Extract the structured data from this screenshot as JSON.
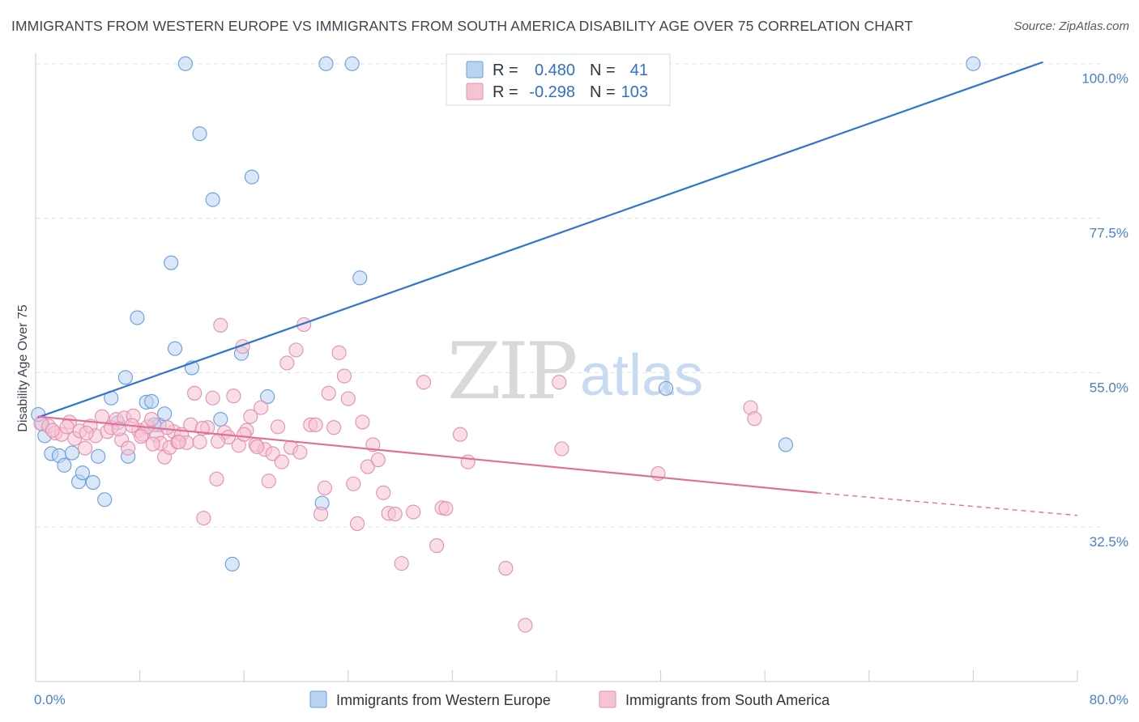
{
  "title": "IMMIGRANTS FROM WESTERN EUROPE VS IMMIGRANTS FROM SOUTH AMERICA DISABILITY AGE OVER 75 CORRELATION CHART",
  "source": "Source: ZipAtlas.com",
  "watermark": {
    "part1": "ZIP",
    "part2": "atlas"
  },
  "colors": {
    "blue": "#2f74d0",
    "blue_fill": "#b9d3f3",
    "pink": "#e07098",
    "pink_fill": "#f6c3d3",
    "grid": "#dde1e6",
    "tick_label": "#4a7fd0"
  },
  "legend": {
    "r_label": "R =",
    "n_label": "N =",
    "rows": [
      {
        "r": "0.480",
        "n": "41",
        "color": "blue"
      },
      {
        "r": "-0.298",
        "n": "103",
        "color": "pink"
      }
    ]
  },
  "chart_data": {
    "type": "scatter",
    "title": "IMMIGRANTS FROM WESTERN EUROPE VS IMMIGRANTS FROM SOUTH AMERICA DISABILITY AGE OVER 75 CORRELATION CHART",
    "xlabel": "",
    "ylabel": "Disability Age Over 75",
    "xlim": [
      0,
      80
    ],
    "ylim": [
      10,
      101.5
    ],
    "x_tick_labels": [
      {
        "value": 0,
        "label": "0.0%"
      },
      {
        "value": 80,
        "label": "80.0%"
      }
    ],
    "y_tick_labels": [
      {
        "value": 100,
        "label": "100.0%"
      },
      {
        "value": 77.5,
        "label": "77.5%"
      },
      {
        "value": 55,
        "label": "55.0%"
      },
      {
        "value": 32.5,
        "label": "32.5%"
      }
    ],
    "grid": true,
    "legend_position": "bottom",
    "series": [
      {
        "name": "Immigrants from Western Europe",
        "color": "blue",
        "trend": {
          "x1": 0.2,
          "y1": 48.5,
          "x2": 77.3,
          "y2": 100.2,
          "dashed_to": null
        },
        "points": [
          [
            0.5,
            47.5
          ],
          [
            0.7,
            45.8
          ],
          [
            1.2,
            43.2
          ],
          [
            1.8,
            42.9
          ],
          [
            2.2,
            41.5
          ],
          [
            2.8,
            43.3
          ],
          [
            3.3,
            39.1
          ],
          [
            3.6,
            40.4
          ],
          [
            4.4,
            39.0
          ],
          [
            4.8,
            42.8
          ],
          [
            5.3,
            36.5
          ],
          [
            5.8,
            51.3
          ],
          [
            6.3,
            47.7
          ],
          [
            6.9,
            54.3
          ],
          [
            7.1,
            42.8
          ],
          [
            7.8,
            63.0
          ],
          [
            8.5,
            50.7
          ],
          [
            8.9,
            50.8
          ],
          [
            9.5,
            47.4
          ],
          [
            9.9,
            49.0
          ],
          [
            10.4,
            71.0
          ],
          [
            10.7,
            58.5
          ],
          [
            11.5,
            100.0
          ],
          [
            12.0,
            55.7
          ],
          [
            12.6,
            89.8
          ],
          [
            13.6,
            80.2
          ],
          [
            14.2,
            48.2
          ],
          [
            15.1,
            27.1
          ],
          [
            15.8,
            57.8
          ],
          [
            16.6,
            83.5
          ],
          [
            17.8,
            51.5
          ],
          [
            22.0,
            36.0
          ],
          [
            22.3,
            100.0
          ],
          [
            24.3,
            100.0
          ],
          [
            24.9,
            68.8
          ],
          [
            33.7,
            100.0
          ],
          [
            48.4,
            52.7
          ],
          [
            57.6,
            44.5
          ],
          [
            72.0,
            100.0
          ],
          [
            0.2,
            48.9
          ],
          [
            9.1,
            47.4
          ]
        ]
      },
      {
        "name": "Immigrants from South America",
        "color": "pink",
        "trend": {
          "x1": 0.2,
          "y1": 48.6,
          "x2": 60.0,
          "y2": 37.5,
          "dashed_to": {
            "x": 80.0,
            "y": 34.2
          }
        },
        "points": [
          [
            0.4,
            47.6
          ],
          [
            1.0,
            47.2
          ],
          [
            1.5,
            46.2
          ],
          [
            2.0,
            46.0
          ],
          [
            2.6,
            47.8
          ],
          [
            3.0,
            45.4
          ],
          [
            3.4,
            46.5
          ],
          [
            3.8,
            44.0
          ],
          [
            4.2,
            47.2
          ],
          [
            4.6,
            45.8
          ],
          [
            5.1,
            48.6
          ],
          [
            5.5,
            46.4
          ],
          [
            5.8,
            47.0
          ],
          [
            6.2,
            48.2
          ],
          [
            6.6,
            45.2
          ],
          [
            6.8,
            48.4
          ],
          [
            7.1,
            44.0
          ],
          [
            7.5,
            48.7
          ],
          [
            7.9,
            46.6
          ],
          [
            8.2,
            46.0
          ],
          [
            8.6,
            47.1
          ],
          [
            8.9,
            48.2
          ],
          [
            9.3,
            45.9
          ],
          [
            9.6,
            44.7
          ],
          [
            9.9,
            42.7
          ],
          [
            10.3,
            44.1
          ],
          [
            10.6,
            46.4
          ],
          [
            10.9,
            44.9
          ],
          [
            11.2,
            46.0
          ],
          [
            11.6,
            44.8
          ],
          [
            11.9,
            47.4
          ],
          [
            12.2,
            52.0
          ],
          [
            12.6,
            44.9
          ],
          [
            12.9,
            33.8
          ],
          [
            13.2,
            47.0
          ],
          [
            13.6,
            51.3
          ],
          [
            13.9,
            39.5
          ],
          [
            14.2,
            61.9
          ],
          [
            14.5,
            46.3
          ],
          [
            14.8,
            45.6
          ],
          [
            15.2,
            51.6
          ],
          [
            15.6,
            44.4
          ],
          [
            15.9,
            58.8
          ],
          [
            16.2,
            46.6
          ],
          [
            16.5,
            48.6
          ],
          [
            16.9,
            44.5
          ],
          [
            17.3,
            49.9
          ],
          [
            17.6,
            43.8
          ],
          [
            17.9,
            39.2
          ],
          [
            18.2,
            43.2
          ],
          [
            18.6,
            47.1
          ],
          [
            18.9,
            42.0
          ],
          [
            19.3,
            56.4
          ],
          [
            19.6,
            44.1
          ],
          [
            20.0,
            58.3
          ],
          [
            20.3,
            43.4
          ],
          [
            20.6,
            62.0
          ],
          [
            21.1,
            47.4
          ],
          [
            21.5,
            47.4
          ],
          [
            21.9,
            34.4
          ],
          [
            22.2,
            38.2
          ],
          [
            22.5,
            52.0
          ],
          [
            22.9,
            47.0
          ],
          [
            23.3,
            57.9
          ],
          [
            23.7,
            54.5
          ],
          [
            24.0,
            51.2
          ],
          [
            24.4,
            38.8
          ],
          [
            24.7,
            33.0
          ],
          [
            25.1,
            47.8
          ],
          [
            25.5,
            41.3
          ],
          [
            25.9,
            44.5
          ],
          [
            26.3,
            42.3
          ],
          [
            26.7,
            37.5
          ],
          [
            27.1,
            34.5
          ],
          [
            27.6,
            34.4
          ],
          [
            28.1,
            27.2
          ],
          [
            29.0,
            34.7
          ],
          [
            29.8,
            53.6
          ],
          [
            30.8,
            29.8
          ],
          [
            31.2,
            35.3
          ],
          [
            31.5,
            35.2
          ],
          [
            32.6,
            46.0
          ],
          [
            33.2,
            42.0
          ],
          [
            36.1,
            26.5
          ],
          [
            37.6,
            18.2
          ],
          [
            40.2,
            53.6
          ],
          [
            40.4,
            43.9
          ],
          [
            47.8,
            40.3
          ],
          [
            54.9,
            49.9
          ],
          [
            55.2,
            48.3
          ],
          [
            1.3,
            46.6
          ],
          [
            2.4,
            47.1
          ],
          [
            3.9,
            46.2
          ],
          [
            6.4,
            46.8
          ],
          [
            7.4,
            47.3
          ],
          [
            8.1,
            45.7
          ],
          [
            9.0,
            44.6
          ],
          [
            10.1,
            47.0
          ],
          [
            11.0,
            44.9
          ],
          [
            12.8,
            46.9
          ],
          [
            14.0,
            45.0
          ],
          [
            16.0,
            46.0
          ],
          [
            17.0,
            44.2
          ]
        ]
      }
    ]
  }
}
